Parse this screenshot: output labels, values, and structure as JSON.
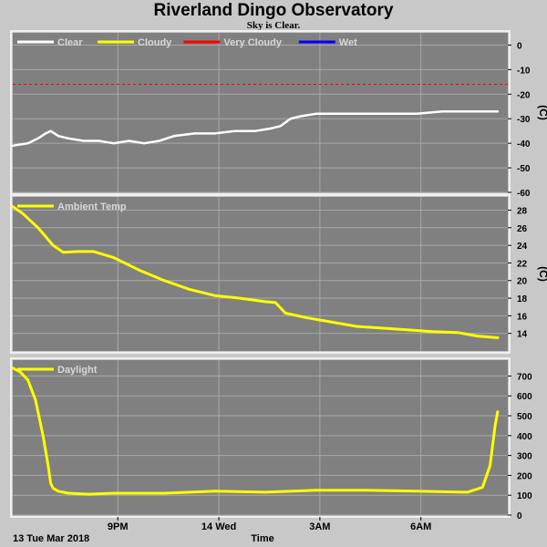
{
  "title": "Riverland Dingo Observatory",
  "subtitle": "Sky is Clear.",
  "footer": {
    "date_label": "13 Tue Mar 2018",
    "axis_label": "Time"
  },
  "chart_data": [
    {
      "type": "line",
      "name": "sky",
      "unit": "(C)",
      "yticks": [
        0,
        -10,
        -20,
        -30,
        -40,
        -50,
        -60
      ],
      "ylim": [
        -60,
        5
      ],
      "x_range": [
        0,
        9.8
      ],
      "xticks": [
        {
          "label": "9PM",
          "x": 2.08
        },
        {
          "label": "14 Wed",
          "x": 4.08
        },
        {
          "label": "3AM",
          "x": 6.08
        },
        {
          "label": "6AM",
          "x": 8.08
        }
      ],
      "legend": [
        {
          "label": "Clear",
          "color": "#ffffff"
        },
        {
          "label": "Cloudy",
          "color": "#ffff00"
        },
        {
          "label": "Very Cloudy",
          "color": "#ff0000"
        },
        {
          "label": "Wet",
          "color": "#0000ff"
        }
      ],
      "threshold": {
        "value": -16,
        "color": "#ff0000"
      },
      "series": [
        {
          "color": "#ffffff",
          "x": [
            0,
            0.3,
            0.5,
            0.65,
            0.75,
            0.9,
            1.1,
            1.4,
            1.7,
            2.0,
            2.3,
            2.6,
            2.9,
            3.2,
            3.6,
            4.0,
            4.4,
            4.8,
            5.1,
            5.3,
            5.5,
            5.7,
            6.0,
            6.5,
            7.0,
            7.5,
            8.0,
            8.5,
            9.0,
            9.6
          ],
          "y": [
            -41,
            -40,
            -38,
            -36,
            -35,
            -37,
            -38,
            -39,
            -39,
            -40,
            -39,
            -40,
            -39,
            -37,
            -36,
            -36,
            -35,
            -35,
            -34,
            -33,
            -30,
            -29,
            -28,
            -28,
            -28,
            -28,
            -28,
            -27,
            -27,
            -27
          ]
        }
      ]
    },
    {
      "type": "line",
      "name": "ambient",
      "unit": "(C)",
      "yticks": [
        28,
        26,
        24,
        22,
        20,
        18,
        16,
        14
      ],
      "ylim": [
        12,
        29.5
      ],
      "x_range": [
        0,
        9.8
      ],
      "xticks": [
        {
          "label": "9PM",
          "x": 2.08
        },
        {
          "label": "14 Wed",
          "x": 4.08
        },
        {
          "label": "3AM",
          "x": 6.08
        },
        {
          "label": "6AM",
          "x": 8.08
        }
      ],
      "legend": [
        {
          "label": "Ambient Temp",
          "color": "#ffff00"
        }
      ],
      "series": [
        {
          "color": "#ffff00",
          "x": [
            0,
            0.2,
            0.5,
            0.8,
            1.0,
            1.3,
            1.6,
            2.0,
            2.5,
            3.0,
            3.5,
            4.0,
            4.5,
            5.0,
            5.2,
            5.4,
            5.8,
            6.3,
            6.8,
            7.3,
            7.8,
            8.3,
            8.8,
            9.2,
            9.6
          ],
          "y": [
            28.4,
            27.6,
            26.0,
            24.0,
            23.2,
            23.3,
            23.3,
            22.6,
            21.2,
            20.0,
            19.0,
            18.3,
            18.0,
            17.6,
            17.5,
            16.3,
            15.8,
            15.3,
            14.8,
            14.6,
            14.4,
            14.2,
            14.1,
            13.7,
            13.5
          ]
        }
      ]
    },
    {
      "type": "line",
      "name": "daylight",
      "unit": "",
      "yticks": [
        700,
        600,
        500,
        400,
        300,
        200,
        100,
        0
      ],
      "ylim": [
        0,
        780
      ],
      "x_range": [
        0,
        9.8
      ],
      "xticks": [
        {
          "label": "9PM",
          "x": 2.08
        },
        {
          "label": "14 Wed",
          "x": 4.08
        },
        {
          "label": "3AM",
          "x": 6.08
        },
        {
          "label": "6AM",
          "x": 8.08
        }
      ],
      "legend": [
        {
          "label": "Daylight",
          "color": "#ffff00"
        }
      ],
      "series": [
        {
          "color": "#ffff00",
          "x": [
            0,
            0.15,
            0.3,
            0.45,
            0.6,
            0.7,
            0.75,
            0.8,
            0.9,
            1.1,
            1.5,
            2.0,
            3.0,
            4.0,
            5.0,
            6.0,
            7.0,
            8.0,
            9.0,
            9.3,
            9.45,
            9.55,
            9.6
          ],
          "y": [
            740,
            720,
            680,
            580,
            400,
            250,
            160,
            135,
            120,
            110,
            105,
            110,
            110,
            120,
            115,
            125,
            125,
            120,
            115,
            140,
            250,
            450,
            520
          ]
        }
      ]
    }
  ]
}
